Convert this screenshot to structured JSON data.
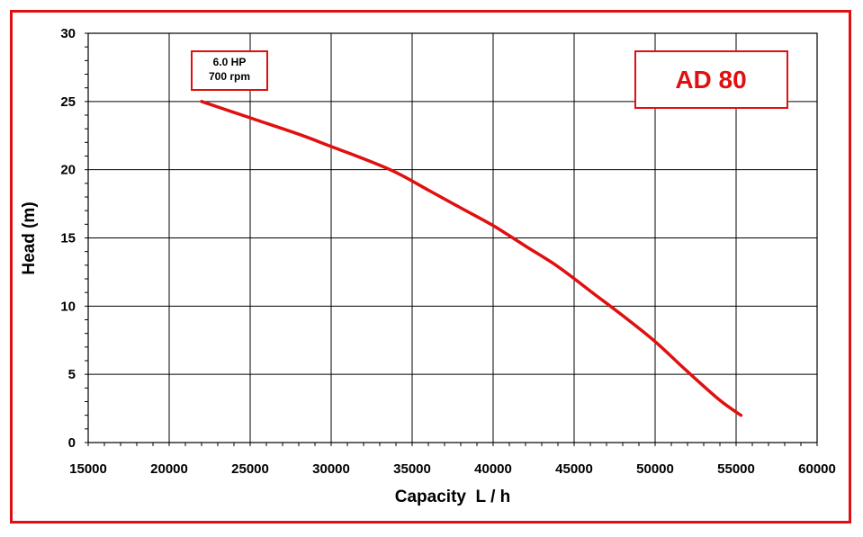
{
  "chart_data": {
    "type": "line",
    "xlabel": "Capacity  L / h",
    "ylabel": "Head (m)",
    "xlim": [
      15000,
      60000
    ],
    "ylim": [
      0,
      30
    ],
    "xticks": [
      15000,
      20000,
      25000,
      30000,
      35000,
      40000,
      45000,
      50000,
      55000,
      60000
    ],
    "yticks": [
      0,
      5,
      10,
      15,
      20,
      25,
      30
    ],
    "grid": true,
    "series": [
      {
        "color": "#e01010",
        "x": [
          22000,
          25000,
          28000,
          30000,
          32000,
          34000,
          36000,
          38000,
          40000,
          42000,
          44000,
          46000,
          48000,
          50000,
          52000,
          54000,
          55300
        ],
        "y": [
          25,
          23.8,
          22.6,
          21.7,
          20.8,
          19.8,
          18.5,
          17.2,
          15.9,
          14.4,
          12.9,
          11.1,
          9.3,
          7.4,
          5.2,
          3.1,
          2.0
        ]
      }
    ],
    "annotations": [
      {
        "id": "motor",
        "lines": [
          "6.0 HP",
          "700 rpm"
        ]
      },
      {
        "id": "model",
        "text": "AD 80",
        "color": "#e01010"
      }
    ]
  },
  "colors": {
    "frame": "#e01010",
    "curve": "#e01010",
    "grid": "#000000"
  }
}
